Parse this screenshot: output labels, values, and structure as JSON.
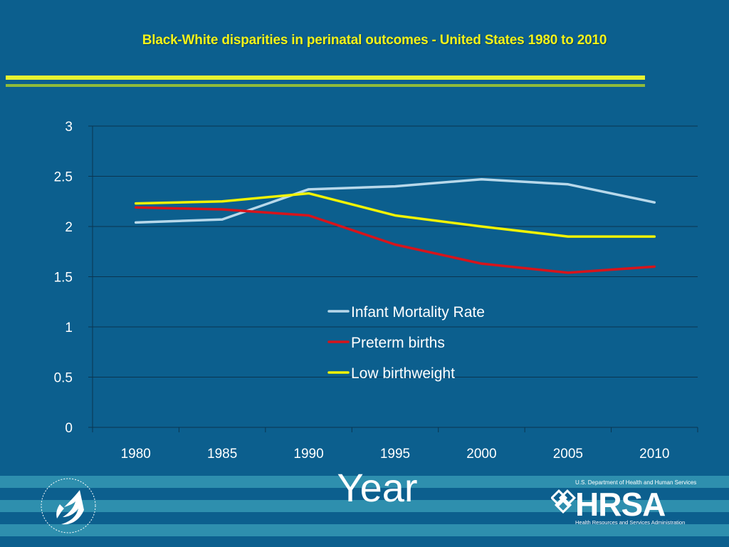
{
  "slide": {
    "title": "Black-White disparities in perinatal outcomes  - United States 1980 to 2010"
  },
  "colors": {
    "background": "#0c5f8e",
    "title": "#f2f21a",
    "grid": "#0a3550",
    "infant_mortality": "#b8d8ea",
    "preterm": "#d7141b",
    "low_birthweight": "#f3f300"
  },
  "chart_data": {
    "type": "line",
    "title": "Black-White disparities in perinatal outcomes  - United States 1980 to 2010",
    "xlabel": "Year",
    "ylabel": "",
    "categories": [
      "1980",
      "1985",
      "1990",
      "1995",
      "2000",
      "2005",
      "2010"
    ],
    "ylim": [
      0,
      3
    ],
    "yticks": [
      "0",
      "0.5",
      "1",
      "1.5",
      "2",
      "2.5",
      "3"
    ],
    "grid": true,
    "legend_position": "center",
    "series": [
      {
        "name": "Infant Mortality Rate",
        "color": "#b8d8ea",
        "values": [
          2.04,
          2.07,
          2.37,
          2.4,
          2.47,
          2.42,
          2.24
        ]
      },
      {
        "name": "Preterm births",
        "color": "#d7141b",
        "values": [
          2.19,
          2.17,
          2.11,
          1.82,
          1.63,
          1.54,
          1.6
        ]
      },
      {
        "name": "Low birthweight",
        "color": "#f3f300",
        "values": [
          2.23,
          2.25,
          2.33,
          2.11,
          2.0,
          1.9,
          1.9
        ]
      }
    ]
  },
  "footer": {
    "seal_icon": "hhs-eagle-seal-icon",
    "logo_top": "U.S. Department of Health and Human Services",
    "logo_main": "HRSA",
    "logo_bottom": "Health Resources and Services Administration"
  }
}
